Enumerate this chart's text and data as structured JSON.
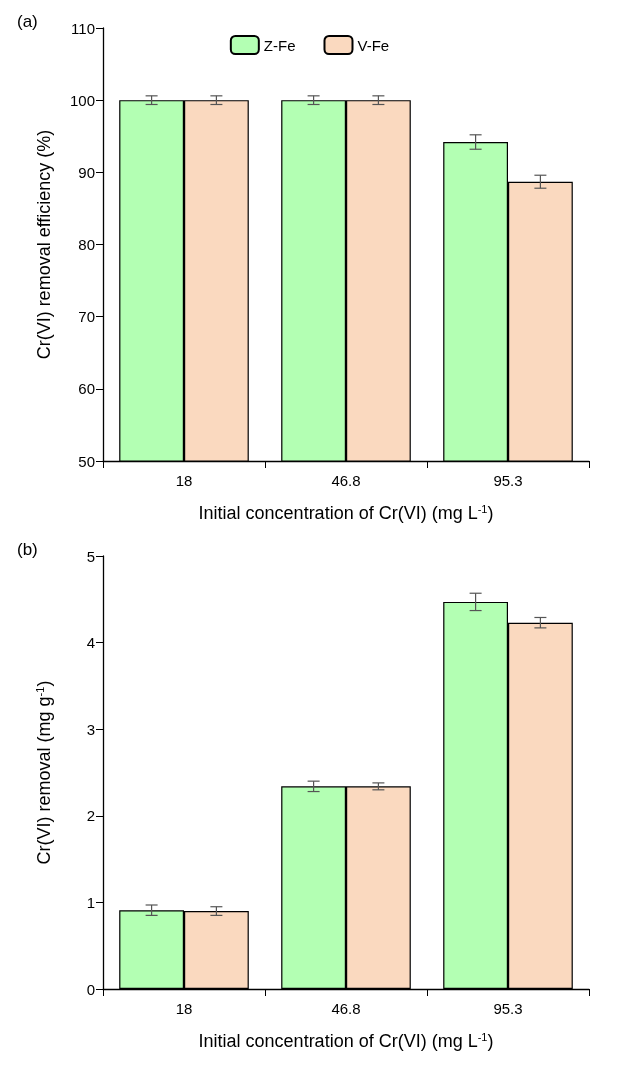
{
  "chart_data": [
    {
      "type": "bar",
      "title": "(a)",
      "xlabel": "Initial concentration of Cr(VI) (mg L$^{-1}$)",
      "ylabel": "Cr(VI) removal efficiency (%)",
      "categories": [
        "18",
        "46.8",
        "95.3"
      ],
      "series": [
        {
          "name": "Z-Fe",
          "color": "#b3ffb3",
          "values": [
            100,
            100,
            94.2
          ],
          "errors": [
            0.6,
            0.6,
            1.0
          ]
        },
        {
          "name": "V-Fe",
          "color": "#fad9bf",
          "values": [
            100,
            100,
            88.7
          ],
          "errors": [
            0.6,
            0.6,
            0.9
          ]
        }
      ],
      "ylim": [
        50,
        110
      ],
      "yticks": [
        50,
        60,
        70,
        80,
        90,
        100,
        110
      ],
      "grid": false,
      "legend": "top"
    },
    {
      "type": "bar",
      "title": "(b)",
      "xlabel": "Initial concentration of Cr(VI) (mg L$^{-1}$)",
      "ylabel": "Cr(VI) removal (mg g$^{-1}$)",
      "categories": [
        "18",
        "46.8",
        "95.3"
      ],
      "series": [
        {
          "color": "#b3ffb3",
          "values": [
            0.91,
            2.34,
            4.47
          ],
          "errors": [
            0.06,
            0.06,
            0.1
          ]
        },
        {
          "color": "#fad9bf",
          "values": [
            0.9,
            2.34,
            4.23
          ],
          "errors": [
            0.05,
            0.04,
            0.06
          ]
        }
      ],
      "ylim": [
        0,
        5
      ],
      "yticks": [
        0,
        1,
        2,
        3,
        4,
        5
      ],
      "grid": false,
      "legend": false
    }
  ]
}
